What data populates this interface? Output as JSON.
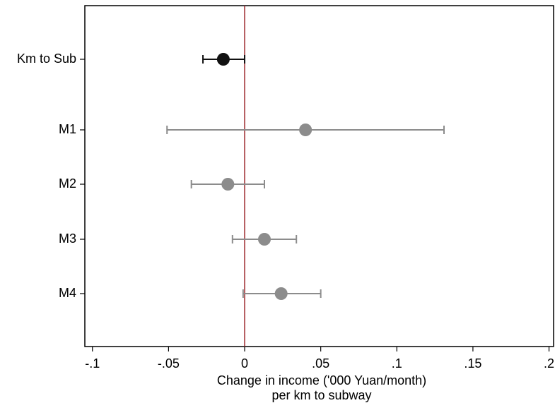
{
  "chart_data": {
    "type": "coefplot",
    "categories": [
      "Km to Sub",
      "M1",
      "M2",
      "M3",
      "M4"
    ],
    "values": [
      -0.014,
      0.04,
      -0.011,
      0.013,
      0.024
    ],
    "ci_low": [
      -0.0274,
      -0.051,
      -0.035,
      -0.008,
      -0.001
    ],
    "ci_high": [
      0.0,
      0.131,
      0.013,
      0.034,
      0.05
    ],
    "colors": [
      "#111111",
      "#8c8c8c",
      "#8c8c8c",
      "#8c8c8c",
      "#8c8c8c"
    ],
    "refline": 0,
    "refline_color": "#9e2a2f",
    "xlim": [
      -0.105,
      0.203
    ],
    "xticks": [
      {
        "value": -0.1,
        "label": "-.1"
      },
      {
        "value": -0.05,
        "label": "-.05"
      },
      0,
      {
        "value": 0.05,
        "label": ".05"
      },
      {
        "value": 0.1,
        "label": ".1"
      },
      {
        "value": 0.15,
        "label": ".15"
      },
      {
        "value": 0.2,
        "label": ".2"
      }
    ],
    "xlabel": [
      "Change in income ('000 Yuan/month)",
      "per km to subway"
    ]
  }
}
